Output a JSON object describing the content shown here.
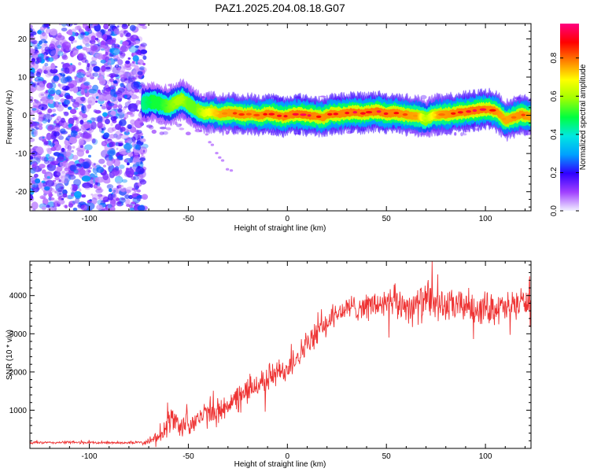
{
  "title": "PAZ1.2025.204.08.18.G07",
  "chart_data": [
    {
      "type": "heatmap",
      "xlabel": "Height of straight line (km)",
      "ylabel": "Frequency (Hz)",
      "xlim": [
        -130,
        123
      ],
      "ylim": [
        -25,
        24
      ],
      "x_ticks": [
        -100,
        -50,
        0,
        50,
        100
      ],
      "x_tick_labels": [
        "-100",
        "-50",
        "0",
        "50",
        "100"
      ],
      "y_ticks": [
        -20,
        -10,
        0,
        10,
        20
      ],
      "y_tick_labels": [
        "-20",
        "-10",
        "0",
        "10",
        "20"
      ],
      "colorbar": {
        "label": "Normalized spectral amplitude",
        "range": [
          0,
          0.98
        ],
        "ticks": [
          0,
          0.2,
          0.4,
          0.6,
          0.8
        ],
        "tick_labels": [
          "0.0",
          "0.2",
          "0.4",
          "0.6",
          "0.8"
        ],
        "colors": [
          "#f2f2ff",
          "#a040ff",
          "#3000ff",
          "#00a0ff",
          "#00e8e0",
          "#00ff40",
          "#a0ff00",
          "#ffff00",
          "#ff8000",
          "#ff0000",
          "#ff0080"
        ]
      },
      "ridge": {
        "x": [
          -72,
          -68,
          -64,
          -60,
          -56,
          -53,
          -50,
          -46,
          -42,
          -38,
          -34,
          -30,
          -26,
          -22,
          -18,
          -14,
          -10,
          -6,
          -2,
          2,
          6,
          10,
          14,
          18,
          22,
          26,
          30,
          34,
          38,
          42,
          46,
          50,
          54,
          58,
          62,
          66,
          70,
          74,
          78,
          82,
          86,
          90,
          94,
          98,
          102,
          106,
          110,
          114,
          118,
          122
        ],
        "y": [
          3.2,
          3.6,
          3.0,
          2.2,
          3.5,
          4.2,
          3.0,
          1.4,
          0.6,
          0.9,
          0.2,
          0.7,
          0.5,
          0.1,
          0.4,
          -0.2,
          0.5,
          0.1,
          -0.4,
          0.2,
          0.3,
          0.0,
          -0.2,
          -0.6,
          0.4,
          0.3,
          0.6,
          0.8,
          0.5,
          0.9,
          1.0,
          0.4,
          0.7,
          0.3,
          0.0,
          -0.2,
          -0.9,
          0.1,
          0.2,
          0.3,
          0.7,
          0.9,
          1.2,
          1.5,
          1.6,
          0.9,
          -1.3,
          -0.6,
          0.2,
          -0.2
        ],
        "amplitude": [
          0.45,
          0.5,
          0.5,
          0.55,
          0.6,
          0.6,
          0.55,
          0.55,
          0.65,
          0.7,
          0.75,
          0.8,
          0.85,
          0.85,
          0.8,
          0.85,
          0.9,
          0.9,
          0.9,
          0.9,
          0.95,
          0.95,
          0.9,
          0.85,
          0.9,
          0.9,
          0.9,
          0.95,
          0.9,
          0.9,
          0.95,
          0.9,
          0.9,
          0.85,
          0.8,
          0.75,
          0.6,
          0.7,
          0.8,
          0.85,
          0.9,
          0.9,
          0.95,
          0.95,
          0.9,
          0.85,
          0.75,
          0.8,
          0.85,
          0.8
        ]
      },
      "noise_region": {
        "x_range": [
          -130,
          -72
        ],
        "y_range": [
          -25,
          24
        ],
        "max_amplitude": 0.25
      }
    },
    {
      "type": "line",
      "xlabel": "Height of straight line (km)",
      "ylabel": "SNR (10 * v/v)",
      "xlim": [
        -130,
        123
      ],
      "ylim": [
        0,
        4900
      ],
      "x_ticks": [
        -100,
        -50,
        0,
        50,
        100
      ],
      "x_tick_labels": [
        "-100",
        "-50",
        "0",
        "50",
        "100"
      ],
      "y_ticks": [
        1000,
        2000,
        3000,
        4000
      ],
      "y_tick_labels": [
        "1000",
        "2000",
        "3000",
        "4000"
      ],
      "series": [
        {
          "color": "#ee3333",
          "x": [
            -130,
            -120,
            -110,
            -100,
            -90,
            -80,
            -70,
            -66,
            -62,
            -58,
            -54,
            -50,
            -46,
            -42,
            -38,
            -34,
            -30,
            -26,
            -22,
            -18,
            -14,
            -10,
            -6,
            -2,
            2,
            6,
            10,
            14,
            18,
            22,
            26,
            30,
            34,
            38,
            42,
            46,
            50,
            54,
            58,
            62,
            66,
            70,
            74,
            78,
            82,
            86,
            90,
            94,
            98,
            102,
            106,
            110,
            114,
            118,
            122
          ],
          "mean": [
            150,
            150,
            160,
            150,
            150,
            150,
            160,
            260,
            560,
            780,
            580,
            650,
            760,
            860,
            900,
            980,
            1180,
            1250,
            1420,
            1600,
            1720,
            1850,
            1950,
            2000,
            2280,
            2480,
            2700,
            2950,
            3200,
            3400,
            3550,
            3650,
            3700,
            3720,
            3740,
            3760,
            3780,
            3800,
            3760,
            3740,
            3760,
            3820,
            3800,
            3750,
            3700,
            3720,
            3760,
            3700,
            3650,
            3700,
            3680,
            3640,
            3780,
            3850,
            3800
          ],
          "noise": [
            40,
            40,
            45,
            40,
            40,
            40,
            60,
            200,
            380,
            420,
            380,
            380,
            380,
            400,
            400,
            420,
            420,
            420,
            440,
            440,
            440,
            440,
            440,
            440,
            420,
            400,
            400,
            380,
            380,
            360,
            360,
            380,
            420,
            440,
            460,
            480,
            480,
            520,
            520,
            520,
            560,
            620,
            560,
            520,
            520,
            520,
            520,
            520,
            520,
            520,
            520,
            500,
            480,
            450,
            400
          ],
          "peak_x": 73,
          "peak_y": 4900
        }
      ]
    }
  ]
}
